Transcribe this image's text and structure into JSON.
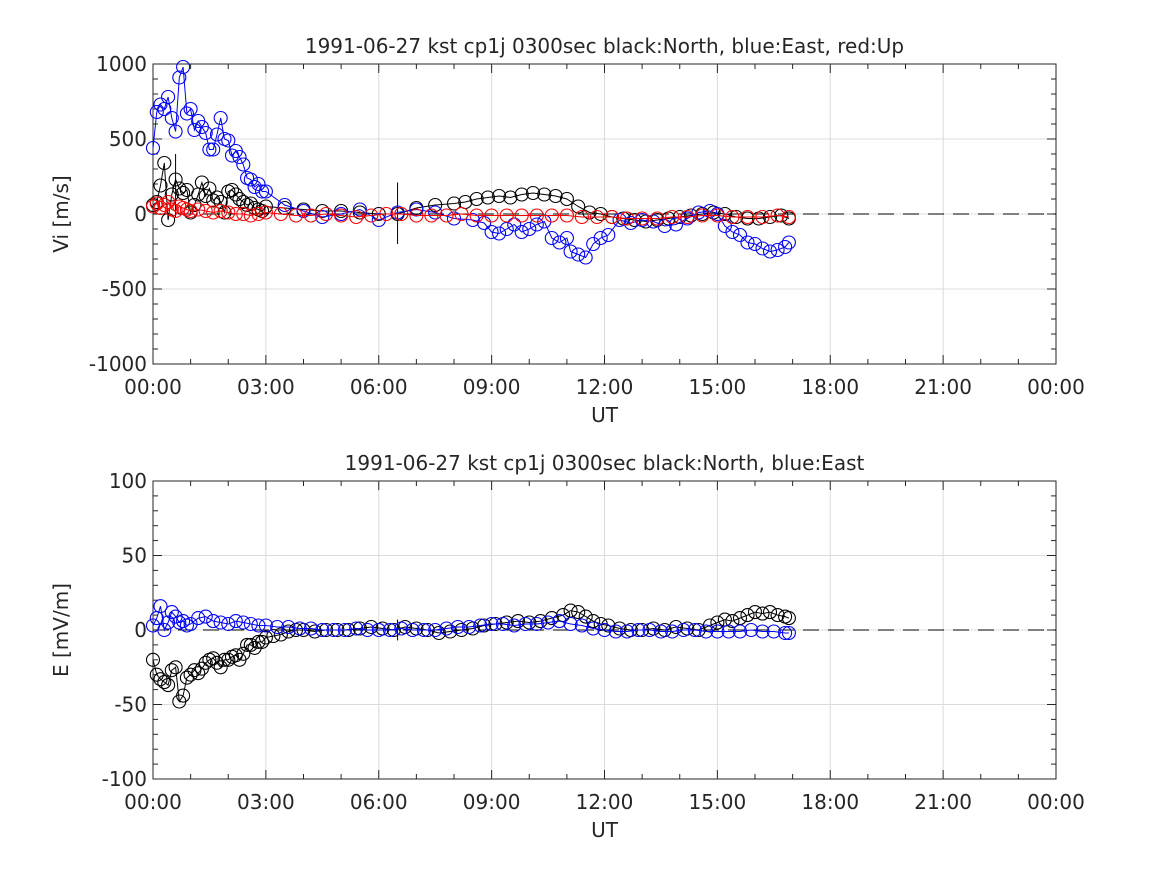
{
  "chart_data": [
    {
      "type": "scatter",
      "title": "1991-06-27 kst cp1j 0300sec black:North, blue:East, red:Up",
      "xlabel": "UT",
      "ylabel": "Vi [m/s]",
      "xlim": [
        0,
        24
      ],
      "ylim": [
        -1000,
        1000
      ],
      "x_tick_labels": [
        "00:00",
        "03:00",
        "06:00",
        "09:00",
        "12:00",
        "15:00",
        "18:00",
        "21:00",
        "00:00"
      ],
      "y_tick_labels": [
        "1000",
        "500",
        "0",
        "-500",
        "-1000"
      ],
      "grid": true,
      "x_unit": "hours UT",
      "error_bars": [
        {
          "x": 0.6,
          "ymin": -20,
          "ymax": 400
        },
        {
          "x": 6.5,
          "ymin": -200,
          "ymax": 210
        }
      ],
      "series": [
        {
          "color": "#000000",
          "x": [
            0.0,
            0.1,
            0.2,
            0.3,
            0.4,
            0.5,
            0.6,
            0.7,
            0.8,
            0.9,
            1.0,
            1.1,
            1.2,
            1.3,
            1.4,
            1.5,
            1.6,
            1.7,
            1.8,
            1.9,
            2.0,
            2.1,
            2.2,
            2.3,
            2.4,
            2.5,
            2.6,
            2.7,
            2.8,
            2.9,
            3.0,
            3.5,
            4.0,
            4.5,
            5.0,
            5.5,
            6.0,
            6.5,
            7.0,
            7.5,
            8.0,
            8.3,
            8.6,
            8.9,
            9.2,
            9.5,
            9.8,
            10.1,
            10.4,
            10.7,
            11.0,
            11.3,
            11.6,
            11.9,
            12.2,
            12.5,
            12.8,
            13.1,
            13.4,
            13.7,
            14.0,
            14.3,
            14.6,
            14.9,
            15.2,
            15.5,
            15.8,
            16.1,
            16.4,
            16.7,
            16.9
          ],
          "y": [
            60,
            80,
            190,
            340,
            -40,
            130,
            230,
            170,
            140,
            160,
            10,
            60,
            130,
            210,
            120,
            170,
            90,
            110,
            80,
            10,
            150,
            160,
            130,
            100,
            80,
            60,
            70,
            40,
            30,
            20,
            50,
            40,
            30,
            20,
            20,
            10,
            0,
            0,
            40,
            60,
            70,
            80,
            100,
            110,
            120,
            110,
            130,
            140,
            130,
            120,
            100,
            50,
            10,
            0,
            -20,
            -30,
            -40,
            -50,
            -40,
            -30,
            -20,
            -10,
            0,
            10,
            0,
            -20,
            -30,
            -30,
            -20,
            -10,
            -30
          ]
        },
        {
          "color": "#0000ff",
          "x": [
            0.0,
            0.1,
            0.2,
            0.3,
            0.4,
            0.5,
            0.6,
            0.7,
            0.8,
            0.9,
            1.0,
            1.1,
            1.2,
            1.3,
            1.4,
            1.5,
            1.6,
            1.7,
            1.8,
            1.9,
            2.0,
            2.1,
            2.2,
            2.3,
            2.4,
            2.5,
            2.6,
            2.7,
            2.8,
            2.9,
            3.0,
            3.5,
            4.0,
            4.5,
            5.0,
            5.5,
            6.0,
            6.5,
            7.0,
            7.5,
            8.0,
            8.5,
            8.8,
            9.0,
            9.2,
            9.4,
            9.6,
            9.8,
            10.0,
            10.2,
            10.4,
            10.6,
            10.8,
            11.0,
            11.1,
            11.3,
            11.5,
            11.7,
            11.9,
            12.1,
            12.4,
            12.7,
            13.0,
            13.3,
            13.6,
            13.9,
            14.2,
            14.5,
            14.8,
            15.0,
            15.2,
            15.4,
            15.6,
            15.8,
            16.0,
            16.2,
            16.4,
            16.6,
            16.8,
            16.9
          ],
          "y": [
            440,
            680,
            730,
            700,
            780,
            640,
            550,
            910,
            980,
            670,
            700,
            560,
            620,
            580,
            540,
            430,
            430,
            530,
            640,
            500,
            490,
            390,
            420,
            380,
            330,
            240,
            230,
            180,
            200,
            150,
            150,
            60,
            20,
            -20,
            0,
            30,
            -40,
            10,
            30,
            10,
            -30,
            -40,
            -60,
            -120,
            -130,
            -100,
            -70,
            -120,
            -100,
            -70,
            -50,
            -160,
            -190,
            -160,
            -250,
            -270,
            -290,
            -200,
            -160,
            -140,
            -40,
            -60,
            -40,
            -50,
            -80,
            -70,
            -30,
            10,
            20,
            0,
            -80,
            -120,
            -140,
            -190,
            -200,
            -230,
            -250,
            -240,
            -220,
            -190
          ]
        },
        {
          "color": "#ff0000",
          "x": [
            0.0,
            0.1,
            0.2,
            0.3,
            0.4,
            0.5,
            0.6,
            0.7,
            0.8,
            0.9,
            1.0,
            1.2,
            1.4,
            1.6,
            1.8,
            2.0,
            2.2,
            2.4,
            2.6,
            2.8,
            3.0,
            3.4,
            3.8,
            4.2,
            4.6,
            5.0,
            5.4,
            5.8,
            6.2,
            6.6,
            7.0,
            7.4,
            7.8,
            8.2,
            8.6,
            9.0,
            9.4,
            9.8,
            10.2,
            10.6,
            11.0,
            11.4,
            11.8,
            12.2,
            12.6,
            13.0,
            13.4,
            13.8,
            14.2,
            14.6,
            15.0,
            15.4,
            15.8,
            16.2,
            16.6,
            16.9
          ],
          "y": [
            50,
            70,
            40,
            60,
            80,
            30,
            20,
            50,
            40,
            30,
            20,
            30,
            20,
            10,
            20,
            10,
            0,
            0,
            -10,
            0,
            10,
            0,
            -10,
            -10,
            0,
            -10,
            -20,
            -10,
            0,
            0,
            -10,
            -10,
            -10,
            0,
            -10,
            -10,
            -10,
            -10,
            -10,
            -10,
            -10,
            -20,
            -20,
            -20,
            -30,
            -30,
            -30,
            -20,
            -20,
            -10,
            -10,
            -20,
            -20,
            -20,
            -10,
            -20
          ]
        }
      ]
    },
    {
      "type": "scatter",
      "title": "1991-06-27 kst cp1j 0300sec black:North, blue:East",
      "xlabel": "UT",
      "ylabel": "E [mV/m]",
      "xlim": [
        0,
        24
      ],
      "ylim": [
        -100,
        100
      ],
      "x_tick_labels": [
        "00:00",
        "03:00",
        "06:00",
        "09:00",
        "12:00",
        "15:00",
        "18:00",
        "21:00",
        "00:00"
      ],
      "y_tick_labels": [
        "100",
        "50",
        "0",
        "-50",
        "-100"
      ],
      "grid": true,
      "x_unit": "hours UT",
      "error_bars": [
        {
          "x": 6.5,
          "ymin": -7,
          "ymax": 7
        }
      ],
      "series": [
        {
          "color": "#000000",
          "x": [
            0.0,
            0.1,
            0.2,
            0.3,
            0.4,
            0.5,
            0.6,
            0.7,
            0.8,
            0.9,
            1.0,
            1.1,
            1.2,
            1.3,
            1.4,
            1.5,
            1.6,
            1.7,
            1.8,
            1.9,
            2.0,
            2.1,
            2.2,
            2.3,
            2.4,
            2.5,
            2.6,
            2.7,
            2.8,
            2.9,
            3.0,
            3.2,
            3.4,
            3.6,
            3.8,
            4.0,
            4.3,
            4.6,
            4.9,
            5.2,
            5.5,
            5.8,
            6.1,
            6.4,
            6.7,
            7.0,
            7.3,
            7.6,
            7.9,
            8.2,
            8.5,
            8.8,
            9.1,
            9.4,
            9.7,
            10.0,
            10.3,
            10.6,
            10.9,
            11.1,
            11.3,
            11.5,
            11.7,
            11.9,
            12.1,
            12.4,
            12.7,
            13.0,
            13.3,
            13.6,
            13.9,
            14.2,
            14.5,
            14.8,
            15.0,
            15.2,
            15.4,
            15.6,
            15.8,
            16.0,
            16.2,
            16.4,
            16.6,
            16.8,
            16.9
          ],
          "y": [
            -20,
            -30,
            -33,
            -35,
            -37,
            -27,
            -25,
            -48,
            -44,
            -32,
            -30,
            -27,
            -29,
            -26,
            -22,
            -20,
            -19,
            -22,
            -25,
            -20,
            -20,
            -18,
            -17,
            -20,
            -16,
            -10,
            -10,
            -12,
            -8,
            -8,
            -5,
            -4,
            -3,
            -1,
            0,
            0,
            -1,
            0,
            0,
            0,
            1,
            2,
            1,
            0,
            2,
            1,
            0,
            -2,
            -1,
            0,
            1,
            3,
            4,
            5,
            6,
            5,
            6,
            8,
            10,
            13,
            12,
            9,
            6,
            4,
            3,
            1,
            0,
            0,
            1,
            0,
            2,
            1,
            0,
            3,
            5,
            7,
            6,
            8,
            10,
            12,
            11,
            12,
            10,
            9,
            8
          ]
        },
        {
          "color": "#0000ff",
          "x": [
            0.0,
            0.1,
            0.2,
            0.3,
            0.4,
            0.5,
            0.6,
            0.7,
            0.8,
            0.9,
            1.0,
            1.2,
            1.4,
            1.6,
            1.8,
            2.0,
            2.2,
            2.4,
            2.6,
            2.8,
            3.0,
            3.3,
            3.6,
            3.9,
            4.2,
            4.5,
            4.8,
            5.1,
            5.4,
            5.7,
            6.0,
            6.3,
            6.6,
            6.9,
            7.2,
            7.5,
            7.8,
            8.1,
            8.4,
            8.7,
            9.0,
            9.3,
            9.6,
            9.9,
            10.2,
            10.5,
            10.8,
            11.1,
            11.4,
            11.7,
            12.0,
            12.3,
            12.6,
            12.9,
            13.2,
            13.5,
            13.8,
            14.1,
            14.4,
            14.7,
            15.0,
            15.3,
            15.6,
            15.9,
            16.2,
            16.5,
            16.8,
            16.9
          ],
          "y": [
            3,
            8,
            16,
            0,
            5,
            12,
            9,
            5,
            6,
            3,
            4,
            8,
            9,
            6,
            5,
            4,
            6,
            5,
            4,
            3,
            3,
            2,
            2,
            1,
            1,
            0,
            0,
            0,
            1,
            0,
            0,
            0,
            1,
            0,
            0,
            0,
            1,
            2,
            2,
            3,
            4,
            4,
            3,
            4,
            4,
            5,
            6,
            4,
            3,
            1,
            0,
            -1,
            -1,
            0,
            0,
            -1,
            -1,
            0,
            0,
            -1,
            -1,
            -1,
            -1,
            0,
            -1,
            -1,
            -2,
            -2
          ]
        }
      ]
    }
  ]
}
